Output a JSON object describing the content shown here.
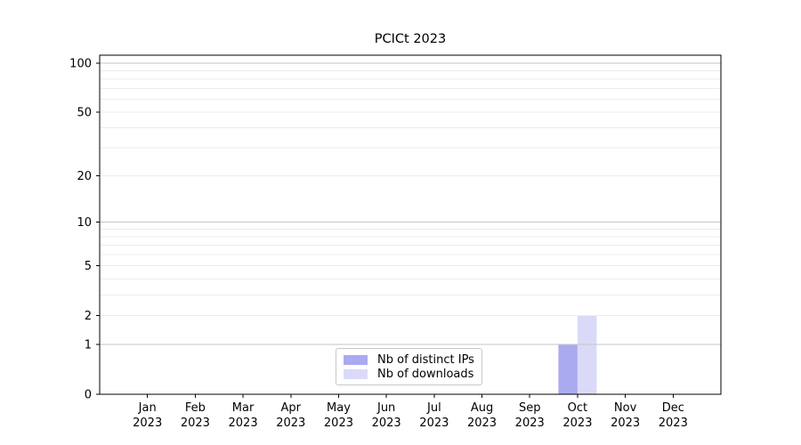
{
  "chart_data": {
    "type": "bar",
    "title": "PCICt 2023",
    "categories": [
      "Jan",
      "Feb",
      "Mar",
      "Apr",
      "May",
      "Jun",
      "Jul",
      "Aug",
      "Sep",
      "Oct",
      "Nov",
      "Dec"
    ],
    "category_year": "2023",
    "series": [
      {
        "name": "Nb of distinct IPs",
        "color": "#aaaaf0",
        "values": [
          0,
          0,
          0,
          0,
          0,
          0,
          0,
          0,
          0,
          1,
          0,
          0
        ]
      },
      {
        "name": "Nb of downloads",
        "color": "#dadaf8",
        "values": [
          0,
          0,
          0,
          0,
          0,
          0,
          0,
          0,
          0,
          2,
          0,
          0
        ]
      }
    ],
    "xlabel": "",
    "ylabel": "",
    "yscale": "log1p",
    "ylim": [
      0,
      112
    ],
    "yticks": [
      0,
      1,
      2,
      5,
      10,
      20,
      50,
      100
    ],
    "major_gridlines": [
      1,
      10,
      100
    ],
    "minor_gridlines": [
      2,
      3,
      4,
      5,
      6,
      7,
      8,
      9,
      20,
      30,
      40,
      50,
      60,
      70,
      80,
      90
    ],
    "grid": "on",
    "legend_position": "bottom-center"
  },
  "colors": {
    "background": "#ffffff",
    "axis": "#000000",
    "major_grid": "#c6c6c6",
    "minor_grid": "#ececec",
    "tick_text": "#000000",
    "legend_border": "#c8c8c8"
  }
}
